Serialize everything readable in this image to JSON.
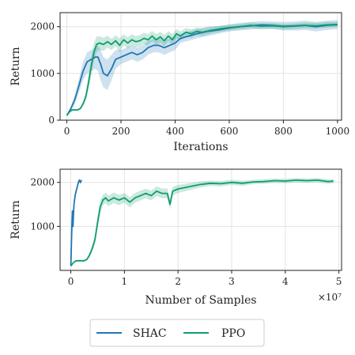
{
  "chart_data": [
    {
      "type": "line",
      "xlabel": "Iterations",
      "ylabel": "Return",
      "xlim": [
        -25,
        1015
      ],
      "ylim": [
        0,
        2300
      ],
      "xticks": [
        0,
        200,
        400,
        600,
        800,
        1000
      ],
      "yticks": [
        0,
        1000,
        2000
      ],
      "grid": true,
      "series": [
        {
          "name": "SHAC",
          "color": "#1f77b4",
          "x": [
            0,
            15,
            30,
            45,
            60,
            75,
            90,
            105,
            115,
            125,
            135,
            150,
            165,
            180,
            200,
            220,
            240,
            260,
            280,
            300,
            320,
            340,
            360,
            380,
            400,
            420,
            450,
            480,
            520,
            560,
            600,
            640,
            680,
            720,
            760,
            800,
            840,
            880,
            920,
            960,
            1000
          ],
          "y": [
            100,
            250,
            450,
            750,
            1050,
            1250,
            1300,
            1350,
            1350,
            1200,
            1000,
            950,
            1100,
            1300,
            1350,
            1400,
            1450,
            1400,
            1450,
            1550,
            1600,
            1600,
            1550,
            1600,
            1650,
            1750,
            1800,
            1850,
            1900,
            1930,
            1970,
            2000,
            2020,
            2040,
            2030,
            2010,
            2020,
            2030,
            2000,
            2030,
            2040
          ],
          "lower": [
            100,
            200,
            350,
            600,
            850,
            1000,
            1050,
            1100,
            1050,
            850,
            700,
            650,
            850,
            1100,
            1200,
            1250,
            1300,
            1250,
            1300,
            1400,
            1450,
            1450,
            1400,
            1450,
            1500,
            1650,
            1700,
            1750,
            1800,
            1850,
            1900,
            1920,
            1940,
            1950,
            1950,
            1920,
            1920,
            1930,
            1900,
            1930,
            1950
          ],
          "upper": [
            100,
            300,
            550,
            900,
            1250,
            1450,
            1500,
            1550,
            1600,
            1500,
            1350,
            1300,
            1400,
            1500,
            1500,
            1550,
            1600,
            1550,
            1600,
            1700,
            1750,
            1750,
            1700,
            1750,
            1800,
            1850,
            1900,
            1950,
            2000,
            2010,
            2050,
            2080,
            2100,
            2120,
            2110,
            2100,
            2110,
            2130,
            2100,
            2130,
            2140
          ]
        },
        {
          "name": "PPO",
          "color": "#0f9d6e",
          "x": [
            0,
            10,
            20,
            30,
            40,
            50,
            60,
            70,
            80,
            90,
            100,
            110,
            120,
            135,
            150,
            165,
            180,
            195,
            210,
            225,
            240,
            255,
            270,
            285,
            300,
            315,
            330,
            345,
            360,
            375,
            390,
            405,
            420,
            440,
            460,
            480,
            500,
            530,
            560,
            600,
            640,
            680,
            720,
            760,
            800,
            840,
            880,
            920,
            960,
            1000
          ],
          "y": [
            100,
            180,
            220,
            220,
            220,
            250,
            350,
            500,
            800,
            1150,
            1450,
            1620,
            1650,
            1620,
            1680,
            1620,
            1700,
            1600,
            1720,
            1650,
            1720,
            1680,
            1700,
            1750,
            1720,
            1800,
            1720,
            1780,
            1700,
            1800,
            1720,
            1850,
            1800,
            1880,
            1850,
            1900,
            1880,
            1920,
            1950,
            1980,
            2000,
            2030,
            2010,
            2020,
            2000,
            2010,
            2030,
            2020,
            2040,
            2050
          ],
          "lower": [
            100,
            170,
            200,
            200,
            200,
            230,
            300,
            420,
            650,
            950,
            1250,
            1450,
            1500,
            1480,
            1550,
            1500,
            1580,
            1450,
            1600,
            1530,
            1600,
            1560,
            1580,
            1630,
            1600,
            1690,
            1600,
            1670,
            1580,
            1690,
            1600,
            1750,
            1700,
            1790,
            1760,
            1820,
            1800,
            1850,
            1880,
            1920,
            1940,
            1970,
            1950,
            1960,
            1940,
            1950,
            1970,
            1960,
            1980,
            2000
          ],
          "upper": [
            100,
            190,
            240,
            240,
            240,
            270,
            400,
            580,
            950,
            1350,
            1650,
            1790,
            1800,
            1760,
            1810,
            1740,
            1820,
            1750,
            1840,
            1770,
            1840,
            1800,
            1820,
            1870,
            1840,
            1910,
            1840,
            1890,
            1820,
            1910,
            1840,
            1950,
            1900,
            1970,
            1940,
            1980,
            1960,
            1990,
            2020,
            2040,
            2060,
            2090,
            2070,
            2080,
            2060,
            2070,
            2090,
            2080,
            2100,
            2100
          ]
        }
      ]
    },
    {
      "type": "line",
      "xlabel": "Number of Samples",
      "ylabel": "Return",
      "xlim": [
        -0.2,
        5.05
      ],
      "ylim": [
        0,
        2300
      ],
      "xticks": [
        0,
        1,
        2,
        3,
        4,
        5
      ],
      "yticks": [
        1000,
        2000
      ],
      "x_multiplier": "×10⁷",
      "grid": true,
      "series": [
        {
          "name": "SHAC",
          "color": "#1f77b4",
          "x": [
            0,
            0.02,
            0.03,
            0.04,
            0.05,
            0.06,
            0.08,
            0.1,
            0.12,
            0.14,
            0.16,
            0.18,
            0.2
          ],
          "y": [
            100,
            1000,
            1350,
            1000,
            1300,
            1500,
            1700,
            1800,
            1900,
            2000,
            2050,
            2000,
            2050
          ],
          "lower": [
            100,
            900,
            1200,
            850,
            1200,
            1400,
            1600,
            1750,
            1850,
            1950,
            2000,
            1950,
            2000
          ],
          "upper": [
            100,
            1100,
            1450,
            1150,
            1400,
            1600,
            1800,
            1850,
            1950,
            2050,
            2100,
            2050,
            2100
          ]
        },
        {
          "name": "PPO",
          "color": "#0f9d6e",
          "x": [
            0,
            0.05,
            0.1,
            0.15,
            0.2,
            0.25,
            0.3,
            0.35,
            0.4,
            0.45,
            0.5,
            0.55,
            0.6,
            0.65,
            0.7,
            0.8,
            0.9,
            1.0,
            1.1,
            1.2,
            1.3,
            1.4,
            1.5,
            1.6,
            1.7,
            1.8,
            1.85,
            1.9,
            2.0,
            2.2,
            2.4,
            2.6,
            2.8,
            3.0,
            3.2,
            3.4,
            3.6,
            3.8,
            4.0,
            4.2,
            4.4,
            4.6,
            4.8,
            4.9
          ],
          "y": [
            100,
            180,
            220,
            220,
            220,
            220,
            250,
            350,
            500,
            700,
            1100,
            1450,
            1600,
            1650,
            1580,
            1650,
            1600,
            1650,
            1550,
            1650,
            1700,
            1750,
            1700,
            1800,
            1750,
            1750,
            1500,
            1800,
            1850,
            1900,
            1950,
            1980,
            1970,
            2000,
            1980,
            2010,
            2020,
            2040,
            2030,
            2050,
            2040,
            2050,
            2020,
            2030
          ],
          "lower": [
            100,
            170,
            200,
            200,
            200,
            200,
            230,
            300,
            420,
            600,
            950,
            1300,
            1480,
            1530,
            1460,
            1530,
            1480,
            1540,
            1430,
            1540,
            1590,
            1640,
            1590,
            1690,
            1640,
            1640,
            1380,
            1700,
            1760,
            1820,
            1880,
            1920,
            1910,
            1940,
            1920,
            1960,
            1970,
            1990,
            1980,
            2000,
            1990,
            2000,
            1970,
            1980
          ],
          "upper": [
            100,
            190,
            240,
            240,
            240,
            240,
            270,
            400,
            580,
            800,
            1250,
            1600,
            1720,
            1770,
            1700,
            1770,
            1720,
            1760,
            1670,
            1760,
            1810,
            1860,
            1810,
            1910,
            1860,
            1860,
            1620,
            1900,
            1940,
            1980,
            2020,
            2040,
            2030,
            2060,
            2040,
            2060,
            2070,
            2090,
            2080,
            2100,
            2090,
            2100,
            2070,
            2080
          ]
        }
      ]
    }
  ],
  "legend": {
    "placement": "bottom-center",
    "items": [
      {
        "label": "SHAC",
        "color": "#1f77b4"
      },
      {
        "label": "PPO",
        "color": "#0f9d6e"
      }
    ]
  }
}
